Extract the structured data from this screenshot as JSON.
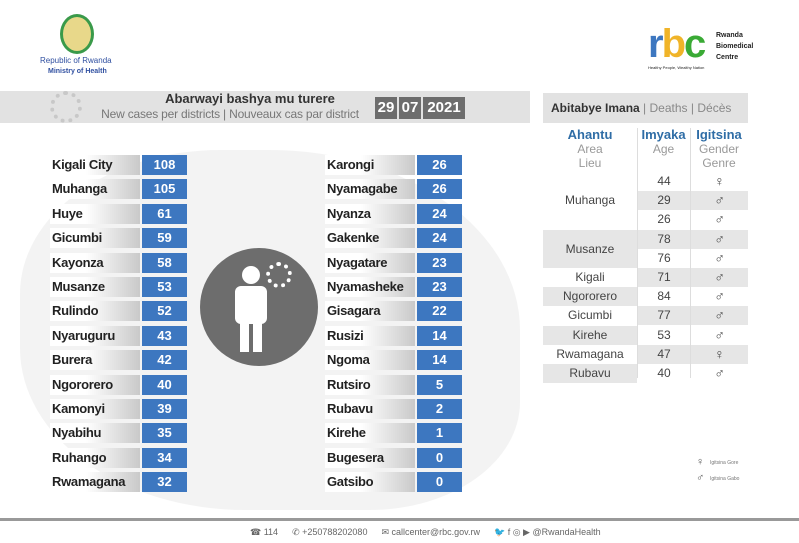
{
  "header": {
    "left_logo_line1": "Republic of Rwanda",
    "left_logo_line2": "Ministry of Health",
    "rbc_logo": "rbc",
    "rbc_name": "Rwanda Biomedical Centre",
    "rbc_tagline": "Healthy People, Wealthy Nation"
  },
  "banner": {
    "title": "Abarwayi bashya mu turere",
    "subtitle": "New cases per districts | Nouveaux cas par district",
    "day": "29",
    "month": "07",
    "year": "2021"
  },
  "cases_left": [
    {
      "d": "Kigali City",
      "v": "108"
    },
    {
      "d": "Muhanga",
      "v": "105"
    },
    {
      "d": "Huye",
      "v": "61"
    },
    {
      "d": "Gicumbi",
      "v": "59"
    },
    {
      "d": "Kayonza",
      "v": "58"
    },
    {
      "d": "Musanze",
      "v": "53"
    },
    {
      "d": "Rulindo",
      "v": "52"
    },
    {
      "d": "Nyaruguru",
      "v": "43"
    },
    {
      "d": "Burera",
      "v": "42"
    },
    {
      "d": "Ngororero",
      "v": "40"
    },
    {
      "d": "Kamonyi",
      "v": "39"
    },
    {
      "d": "Nyabihu",
      "v": "35"
    },
    {
      "d": "Ruhango",
      "v": "34"
    },
    {
      "d": "Rwamagana",
      "v": "32"
    }
  ],
  "cases_right": [
    {
      "d": "Karongi",
      "v": "26"
    },
    {
      "d": "Nyamagabe",
      "v": "26"
    },
    {
      "d": "Nyanza",
      "v": "24"
    },
    {
      "d": "Gakenke",
      "v": "24"
    },
    {
      "d": "Nyagatare",
      "v": "23"
    },
    {
      "d": "Nyamasheke",
      "v": "23"
    },
    {
      "d": "Gisagara",
      "v": "22"
    },
    {
      "d": "Rusizi",
      "v": "14"
    },
    {
      "d": "Ngoma",
      "v": "14"
    },
    {
      "d": "Rutsiro",
      "v": "5"
    },
    {
      "d": "Rubavu",
      "v": "2"
    },
    {
      "d": "Kirehe",
      "v": "1"
    },
    {
      "d": "Bugesera",
      "v": "0"
    },
    {
      "d": "Gatsibo",
      "v": "0"
    }
  ],
  "deaths": {
    "title": "Abitabye Imana",
    "t2": "Deaths",
    "t3": "Décès",
    "sep": "|",
    "col_area": [
      "Ahantu",
      "Area",
      "Lieu"
    ],
    "col_age": [
      "Imyaka",
      "Age"
    ],
    "col_gender": [
      "Igitsina",
      "Gender",
      "Genre"
    ],
    "groups": [
      {
        "area": "Muhanga",
        "rows": 3
      },
      {
        "area": "Musanze",
        "rows": 2
      },
      {
        "area": "Kigali",
        "rows": 1
      },
      {
        "area": "Ngororero",
        "rows": 1
      },
      {
        "area": "Gicumbi",
        "rows": 1
      },
      {
        "area": "Kirehe",
        "rows": 1
      },
      {
        "area": "Rwamagana",
        "rows": 1
      },
      {
        "area": "Rubavu",
        "rows": 1
      }
    ],
    "rows": [
      {
        "age": "44",
        "g": "♀"
      },
      {
        "age": "29",
        "g": "♂"
      },
      {
        "age": "26",
        "g": "♂"
      },
      {
        "age": "78",
        "g": "♂"
      },
      {
        "age": "76",
        "g": "♂"
      },
      {
        "age": "71",
        "g": "♂"
      },
      {
        "age": "84",
        "g": "♂"
      },
      {
        "age": "77",
        "g": "♂"
      },
      {
        "age": "53",
        "g": "♂"
      },
      {
        "age": "47",
        "g": "♀"
      },
      {
        "age": "40",
        "g": "♂"
      }
    ]
  },
  "legend": {
    "female_symbol": "♀",
    "female": "Igitsina Gore",
    "male_symbol": "♂",
    "male": "Igitsina Gabo"
  },
  "footer": {
    "hotline": "114",
    "phone": "+250788202080",
    "email": "callcenter@rbc.gov.rw",
    "social": "@RwandaHealth"
  }
}
